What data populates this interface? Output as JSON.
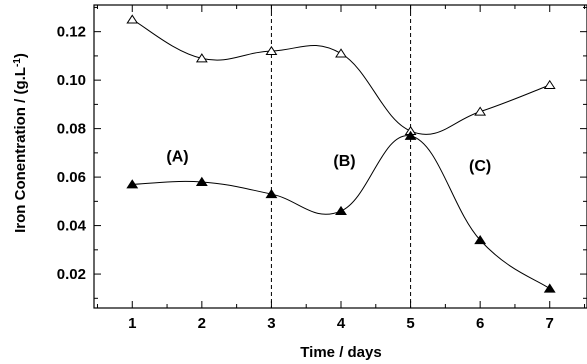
{
  "chart_data": {
    "type": "line",
    "xlabel": "Time / days",
    "ylabel": "Iron Conentration / (g.L",
    "ylabel_sup": "-1",
    "ylabel_end": ")",
    "xlim": [
      0.45,
      7.55
    ],
    "ylim": [
      0.006,
      0.131
    ],
    "x_ticks": [
      1,
      2,
      3,
      4,
      5,
      6,
      7
    ],
    "y_ticks": [
      0.02,
      0.04,
      0.06,
      0.08,
      0.1,
      0.12
    ],
    "y_tick_labels": [
      "0.02",
      "0.04",
      "0.06",
      "0.08",
      "0.10",
      "0.12"
    ],
    "x": [
      1,
      2,
      3,
      4,
      5,
      6,
      7
    ],
    "series": [
      {
        "marker": "open-triangle",
        "values": [
          0.125,
          0.109,
          0.112,
          0.111,
          0.079,
          0.087,
          0.098
        ]
      },
      {
        "marker": "filled-triangle",
        "values": [
          0.057,
          0.058,
          0.053,
          0.046,
          0.077,
          0.034,
          0.014
        ]
      }
    ],
    "dividers": [
      3,
      5
    ],
    "regions": [
      {
        "label": "(A)",
        "x": 1.65,
        "y": 0.0665
      },
      {
        "label": "(B)",
        "x": 4.05,
        "y": 0.0645
      },
      {
        "label": "(C)",
        "x": 6.0,
        "y": 0.0625
      }
    ],
    "grid": false,
    "legend": "none"
  }
}
